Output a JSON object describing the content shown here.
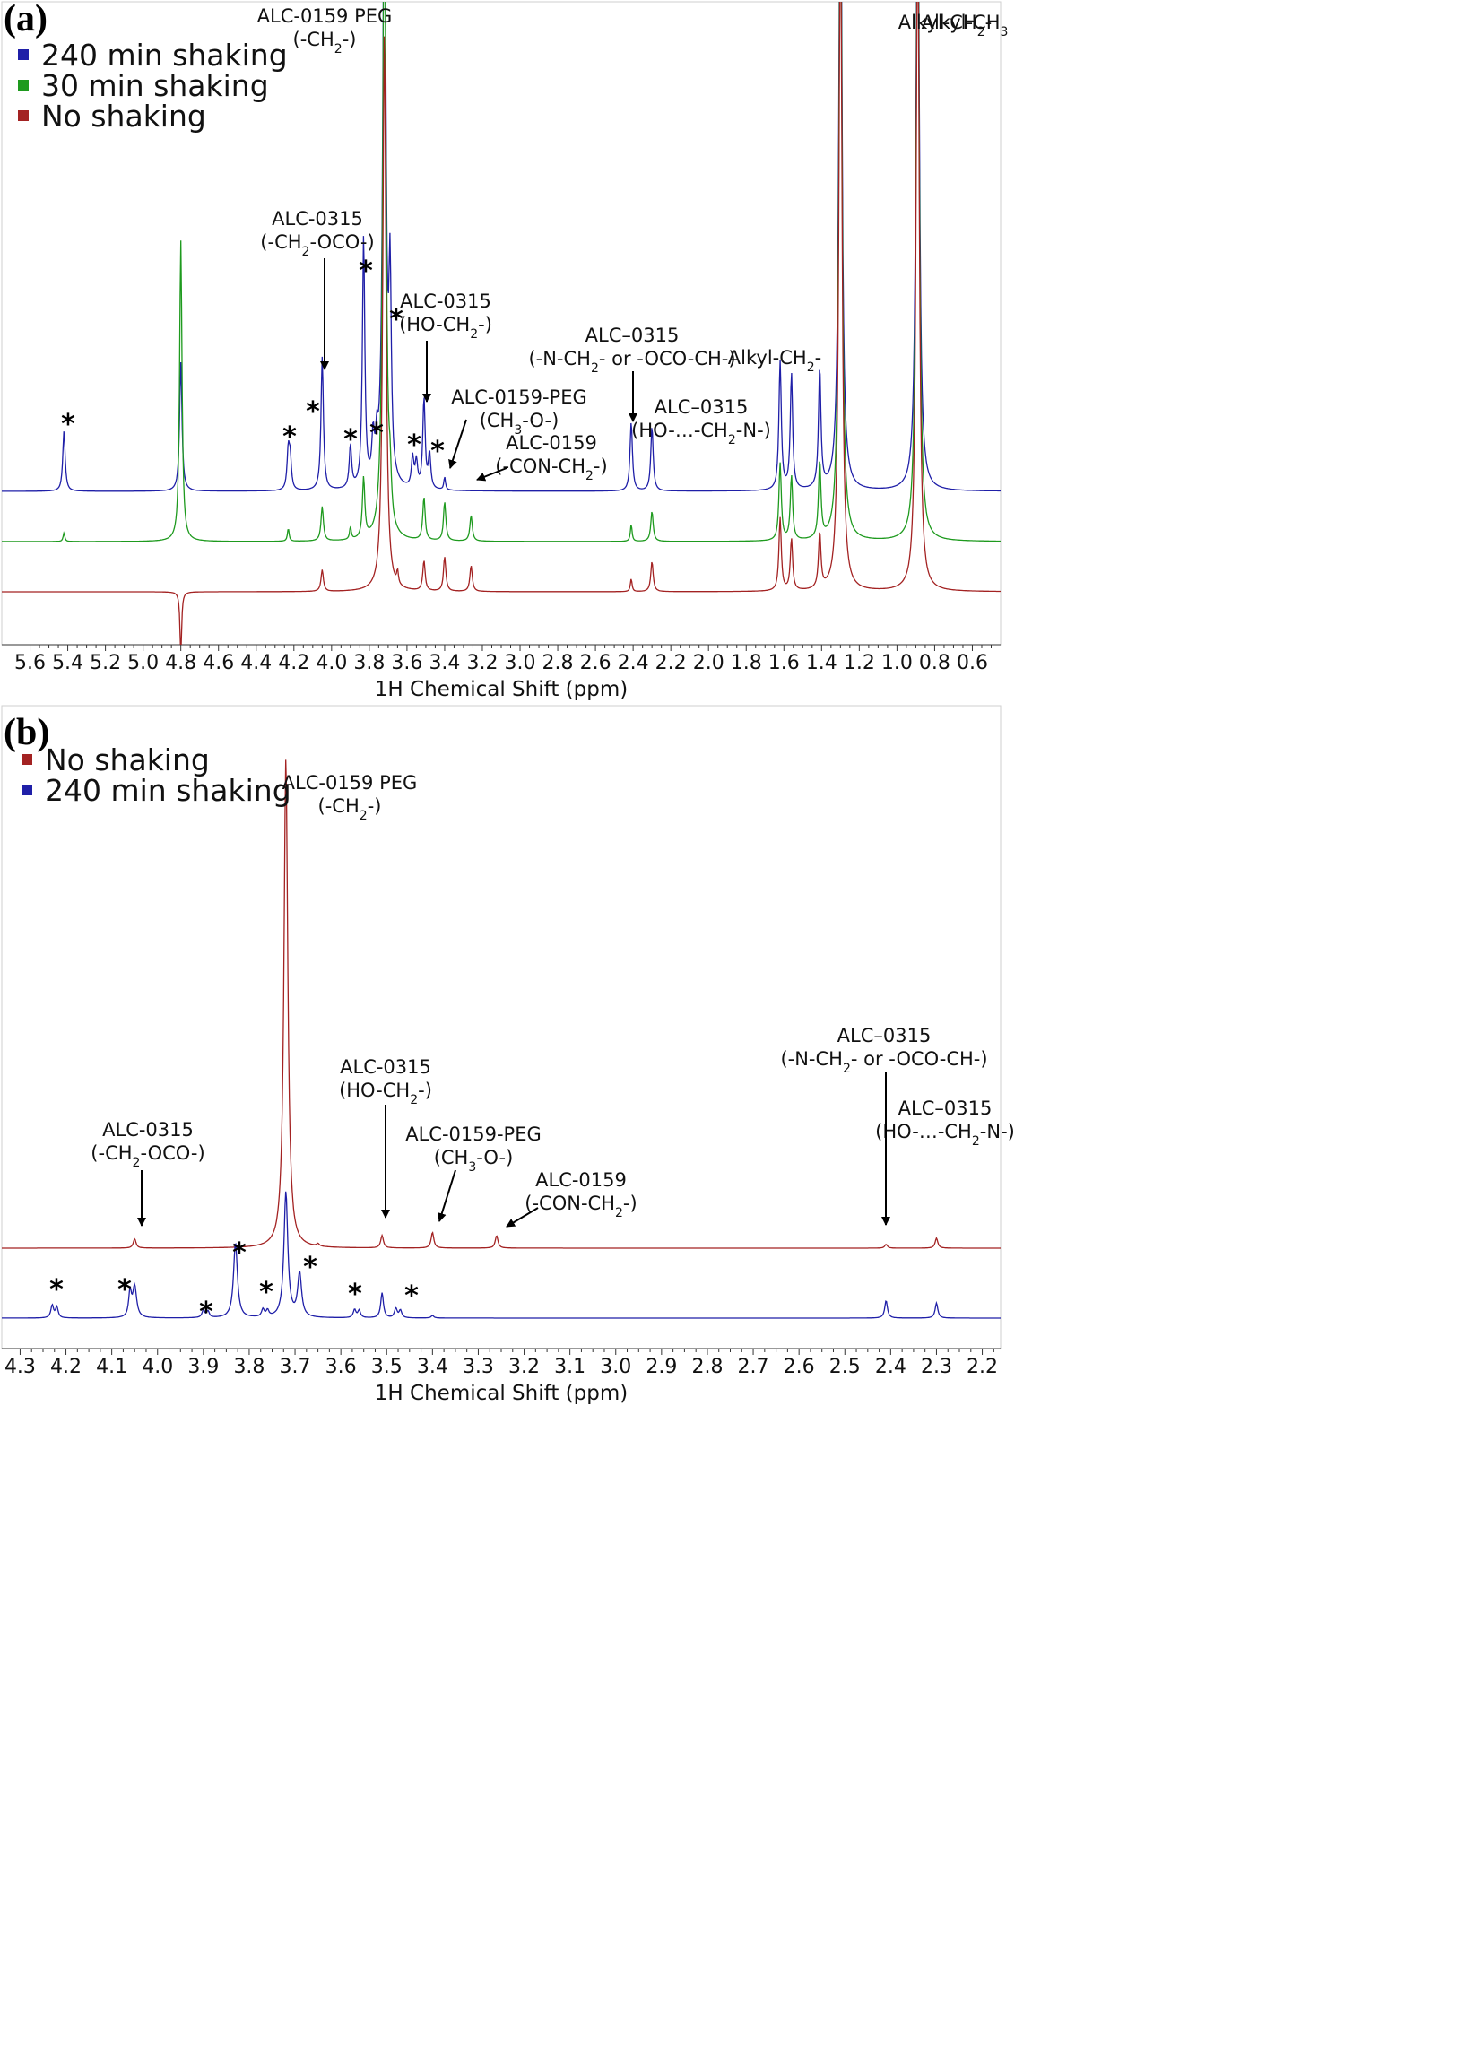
{
  "chart_data": [
    {
      "panel_label": "(a)",
      "type": "line",
      "xlabel": "1H Chemical Shift (ppm)",
      "xlim": [
        5.75,
        0.45
      ],
      "x_ticks": [
        "5.6",
        "5.4",
        "5.2",
        "5.0",
        "4.8",
        "4.6",
        "4.4",
        "4.2",
        "4.0",
        "3.8",
        "3.6",
        "3.4",
        "3.2",
        "3.0",
        "2.8",
        "2.6",
        "2.4",
        "2.2",
        "2.0",
        "1.8",
        "1.6",
        "1.4",
        "1.2",
        "1.0",
        "0.8",
        "0.6"
      ],
      "legend": [
        "240 min shaking",
        "30 min shaking",
        "No shaking"
      ],
      "colors": {
        "240 min shaking": "#1f1fa8",
        "30 min shaking": "#1e9a1e",
        "No shaking": "#a32222"
      },
      "series": [
        {
          "name": "240 min shaking",
          "peaks": [
            [
              5.42,
              0.14
            ],
            [
              4.8,
              0.3
            ],
            [
              4.23,
              0.09
            ],
            [
              4.22,
              0.07
            ],
            [
              4.05,
              0.31
            ],
            [
              3.9,
              0.1
            ],
            [
              3.83,
              0.58
            ],
            [
              3.78,
              0.1
            ],
            [
              3.76,
              0.08
            ],
            [
              3.72,
              1.5
            ],
            [
              3.69,
              0.45
            ],
            [
              3.57,
              0.07
            ],
            [
              3.55,
              0.06
            ],
            [
              3.51,
              0.21
            ],
            [
              3.48,
              0.08
            ],
            [
              3.4,
              0.03
            ],
            [
              2.41,
              0.16
            ],
            [
              2.3,
              0.15
            ],
            [
              1.62,
              0.3
            ],
            [
              1.56,
              0.27
            ],
            [
              1.41,
              0.28
            ],
            [
              1.3,
              1.6
            ],
            [
              0.89,
              1.6
            ]
          ]
        },
        {
          "name": "30 min shaking",
          "peaks": [
            [
              5.42,
              0.02
            ],
            [
              4.8,
              0.7
            ],
            [
              4.23,
              0.03
            ],
            [
              4.05,
              0.08
            ],
            [
              3.9,
              0.03
            ],
            [
              3.83,
              0.14
            ],
            [
              3.72,
              1.6
            ],
            [
              3.69,
              0.09
            ],
            [
              3.51,
              0.1
            ],
            [
              3.4,
              0.09
            ],
            [
              3.26,
              0.06
            ],
            [
              2.41,
              0.04
            ],
            [
              2.3,
              0.07
            ],
            [
              1.62,
              0.18
            ],
            [
              1.56,
              0.15
            ],
            [
              1.41,
              0.18
            ],
            [
              1.3,
              1.6
            ],
            [
              0.89,
              1.6
            ]
          ]
        },
        {
          "name": "No shaking",
          "peaks": [
            [
              4.8,
              -0.15
            ],
            [
              4.05,
              0.05
            ],
            [
              3.72,
              1.3
            ],
            [
              3.65,
              0.03
            ],
            [
              3.51,
              0.07
            ],
            [
              3.4,
              0.08
            ],
            [
              3.26,
              0.06
            ],
            [
              2.41,
              0.03
            ],
            [
              2.3,
              0.07
            ],
            [
              1.62,
              0.17
            ],
            [
              1.56,
              0.12
            ],
            [
              1.41,
              0.13
            ],
            [
              1.3,
              1.6
            ],
            [
              0.89,
              1.6
            ]
          ]
        }
      ],
      "annotations": [
        {
          "lines": [
            "ALC-0159 PEG",
            "(-CH<sub>2</sub>-)"
          ]
        },
        {
          "lines": [
            "ALC-0315",
            "(-CH<sub>2</sub>-OCO-)"
          ]
        },
        {
          "lines": [
            "ALC-0315",
            "(HO-CH<sub>2</sub>-)"
          ]
        },
        {
          "lines": [
            "ALC-0159-PEG",
            "(CH<sub>3</sub>-O-)"
          ]
        },
        {
          "lines": [
            "ALC-0159",
            "(-CON-CH<sub>2</sub>-)"
          ]
        },
        {
          "lines": [
            "ALC–0315",
            "(-N-CH<sub>2</sub>- or -OCO-CH-)"
          ]
        },
        {
          "lines": [
            "ALC–0315",
            "(HO-…-CH<sub>2</sub>-N-)"
          ]
        },
        {
          "lines": [
            "Alkyl-CH<sub>2</sub>-"
          ]
        },
        {
          "lines": [
            "Alkyl-CH<sub>2</sub>-"
          ]
        },
        {
          "lines": [
            "Alkyl-CH<sub>3</sub>"
          ]
        }
      ],
      "stars": [
        "*",
        "*",
        "*",
        "*",
        "*",
        "*",
        "*",
        "*",
        "*",
        "*"
      ]
    },
    {
      "panel_label": "(b)",
      "type": "line",
      "xlabel": "1H Chemical Shift (ppm)",
      "xlim": [
        4.34,
        2.16
      ],
      "x_ticks": [
        "4.3",
        "4.2",
        "4.1",
        "4.0",
        "3.9",
        "3.8",
        "3.7",
        "3.6",
        "3.5",
        "3.4",
        "3.3",
        "3.2",
        "3.1",
        "3.0",
        "2.9",
        "2.8",
        "2.7",
        "2.6",
        "2.5",
        "2.4",
        "2.3",
        "2.2"
      ],
      "legend": [
        "No shaking",
        "240 min shaking"
      ],
      "colors": {
        "No shaking": "#a32222",
        "240 min shaking": "#1f1fa8"
      },
      "series": [
        {
          "name": "No shaking",
          "peaks": [
            [
              4.05,
              0.015
            ],
            [
              3.72,
              0.78
            ],
            [
              3.65,
              0.004
            ],
            [
              3.51,
              0.02
            ],
            [
              3.4,
              0.025
            ],
            [
              3.26,
              0.02
            ],
            [
              2.41,
              0.006
            ],
            [
              2.3,
              0.016
            ]
          ]
        },
        {
          "name": "240 min shaking",
          "peaks": [
            [
              4.23,
              0.02
            ],
            [
              4.22,
              0.017
            ],
            [
              4.06,
              0.04
            ],
            [
              4.05,
              0.05
            ],
            [
              3.9,
              0.012
            ],
            [
              3.89,
              0.01
            ],
            [
              3.83,
              0.12
            ],
            [
              3.77,
              0.012
            ],
            [
              3.76,
              0.01
            ],
            [
              3.72,
              0.2
            ],
            [
              3.69,
              0.07
            ],
            [
              3.57,
              0.013
            ],
            [
              3.56,
              0.012
            ],
            [
              3.51,
              0.04
            ],
            [
              3.48,
              0.015
            ],
            [
              3.47,
              0.012
            ],
            [
              3.4,
              0.004
            ],
            [
              2.41,
              0.028
            ],
            [
              2.3,
              0.024
            ]
          ]
        }
      ],
      "annotations": [
        {
          "lines": [
            "ALC-0159 PEG",
            "(-CH<sub>2</sub>-)"
          ]
        },
        {
          "lines": [
            "ALC-0315",
            "(-CH<sub>2</sub>-OCO-)"
          ]
        },
        {
          "lines": [
            "ALC-0315",
            "(HO-CH<sub>2</sub>-)"
          ]
        },
        {
          "lines": [
            "ALC-0159-PEG",
            "(CH<sub>3</sub>-O-)"
          ]
        },
        {
          "lines": [
            "ALC-0159",
            "(-CON-CH<sub>2</sub>-)"
          ]
        },
        {
          "lines": [
            "ALC–0315",
            "(-N-CH<sub>2</sub>- or -OCO-CH-)"
          ]
        },
        {
          "lines": [
            "ALC–0315",
            "(HO-…-CH<sub>2</sub>-N-)"
          ]
        }
      ],
      "stars": [
        "*",
        "*",
        "*",
        "*",
        "*",
        "*",
        "*",
        "*"
      ]
    }
  ]
}
